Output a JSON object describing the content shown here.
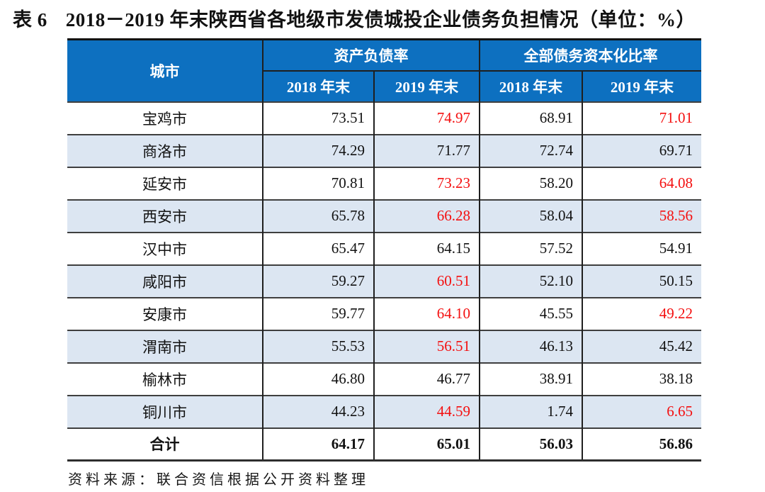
{
  "title": {
    "label": "表 6",
    "text": "2018－2019 年末陕西省各地级市发债城投企业债务负担情况（单位：%）"
  },
  "table": {
    "header": {
      "city": "城市",
      "groups": [
        {
          "label": "资产负债率",
          "sub": [
            "2018 年末",
            "2019 年末"
          ]
        },
        {
          "label": "全部债务资本化比率",
          "sub": [
            "2018 年末",
            "2019 年末"
          ]
        }
      ]
    },
    "rows": [
      {
        "city": "宝鸡市",
        "values": [
          "73.51",
          "74.97",
          "68.91",
          "71.01"
        ],
        "red": [
          false,
          true,
          false,
          true
        ]
      },
      {
        "city": "商洛市",
        "values": [
          "74.29",
          "71.77",
          "72.74",
          "69.71"
        ],
        "red": [
          false,
          false,
          false,
          false
        ]
      },
      {
        "city": "延安市",
        "values": [
          "70.81",
          "73.23",
          "58.20",
          "64.08"
        ],
        "red": [
          false,
          true,
          false,
          true
        ]
      },
      {
        "city": "西安市",
        "values": [
          "65.78",
          "66.28",
          "58.04",
          "58.56"
        ],
        "red": [
          false,
          true,
          false,
          true
        ]
      },
      {
        "city": "汉中市",
        "values": [
          "65.47",
          "64.15",
          "57.52",
          "54.91"
        ],
        "red": [
          false,
          false,
          false,
          false
        ]
      },
      {
        "city": "咸阳市",
        "values": [
          "59.27",
          "60.51",
          "52.10",
          "50.15"
        ],
        "red": [
          false,
          true,
          false,
          false
        ]
      },
      {
        "city": "安康市",
        "values": [
          "59.77",
          "64.10",
          "45.55",
          "49.22"
        ],
        "red": [
          false,
          true,
          false,
          true
        ]
      },
      {
        "city": "渭南市",
        "values": [
          "55.53",
          "56.51",
          "46.13",
          "45.42"
        ],
        "red": [
          false,
          true,
          false,
          false
        ]
      },
      {
        "city": "榆林市",
        "values": [
          "46.80",
          "46.77",
          "38.91",
          "38.18"
        ],
        "red": [
          false,
          false,
          false,
          false
        ]
      },
      {
        "city": "铜川市",
        "values": [
          "44.23",
          "44.59",
          "1.74",
          "6.65"
        ],
        "red": [
          false,
          true,
          false,
          true
        ]
      }
    ],
    "total_row": {
      "city": "合计",
      "values": [
        "64.17",
        "65.01",
        "56.03",
        "56.86"
      ],
      "red": [
        false,
        false,
        false,
        false
      ],
      "bold": true
    }
  },
  "source_note": "资料来源：联合资信根据公开资料整理",
  "colors": {
    "header_bg": "#0d70c0",
    "alt_row_bg": "#dce6f2",
    "highlight_red": "#f40f0f"
  }
}
